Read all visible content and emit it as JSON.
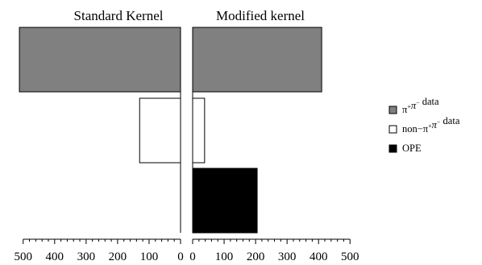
{
  "chart_data": [
    {
      "type": "bar",
      "orientation": "horizontal",
      "direction": "leftward",
      "title": "Standard Kernel",
      "xlim": [
        0,
        500
      ],
      "xticks": [
        "500",
        "400",
        "300",
        "200",
        "100",
        "0"
      ],
      "series": [
        {
          "name": "π⁺π⁻ data",
          "fill": "#808080",
          "value": 512
        },
        {
          "name": "non−π⁺π⁻ data",
          "fill": "#ffffff",
          "value": 130
        },
        {
          "name": "OPE",
          "fill": "#000000",
          "value": 0
        }
      ]
    },
    {
      "type": "bar",
      "orientation": "horizontal",
      "direction": "rightward",
      "title": "Modified kernel",
      "xlim": [
        0,
        500
      ],
      "xticks": [
        "0",
        "100",
        "200",
        "300",
        "400",
        "500"
      ],
      "series": [
        {
          "name": "π⁺π⁻ data",
          "fill": "#808080",
          "value": 410
        },
        {
          "name": "non−π⁺π⁻ data",
          "fill": "#ffffff",
          "value": 38
        },
        {
          "name": "OPE",
          "fill": "#000000",
          "value": 205
        }
      ]
    }
  ],
  "legend": {
    "placement": "right",
    "items": [
      {
        "label_main": "π",
        "sup": "+",
        "label_mid": "π",
        "sup2": "−",
        "label_end": " data",
        "fill": "#808080"
      },
      {
        "label_main": "non−π",
        "sup": "+",
        "label_mid": "π",
        "sup2": "−",
        "label_end": " data",
        "fill": "#ffffff"
      },
      {
        "label_main": "OPE",
        "sup": "",
        "label_mid": "",
        "sup2": "",
        "label_end": "",
        "fill": "#000000"
      }
    ]
  }
}
